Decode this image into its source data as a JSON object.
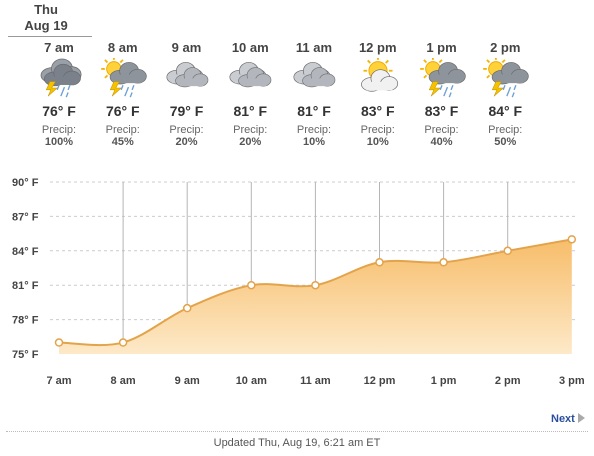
{
  "day": {
    "weekday": "Thu",
    "date": "Aug 19"
  },
  "hours": [
    {
      "time": "7 am",
      "icon": "thunderstorm-icon",
      "temp": "76° F",
      "precip_label": "Precip:",
      "precip": "100%"
    },
    {
      "time": "8 am",
      "icon": "sun-thunderstorm-icon",
      "temp": "76° F",
      "precip_label": "Precip:",
      "precip": "45%"
    },
    {
      "time": "9 am",
      "icon": "cloudy-icon",
      "temp": "79° F",
      "precip_label": "Precip:",
      "precip": "20%"
    },
    {
      "time": "10 am",
      "icon": "cloudy-icon",
      "temp": "81° F",
      "precip_label": "Precip:",
      "precip": "20%"
    },
    {
      "time": "11 am",
      "icon": "cloudy-icon",
      "temp": "81° F",
      "precip_label": "Precip:",
      "precip": "10%"
    },
    {
      "time": "12 pm",
      "icon": "partly-sunny-icon",
      "temp": "83° F",
      "precip_label": "Precip:",
      "precip": "10%"
    },
    {
      "time": "1 pm",
      "icon": "sun-thunderstorm-icon",
      "temp": "83° F",
      "precip_label": "Precip:",
      "precip": "40%"
    },
    {
      "time": "2 pm",
      "icon": "sun-thunderstorm-icon",
      "temp": "84° F",
      "precip_label": "Precip:",
      "precip": "50%"
    }
  ],
  "chart_data": {
    "type": "area",
    "categories": [
      "7 am",
      "8 am",
      "9 am",
      "10 am",
      "11 am",
      "12 pm",
      "1 pm",
      "2 pm",
      "3 pm"
    ],
    "series": [
      {
        "values": [
          76,
          76,
          79,
          81,
          81,
          83,
          83,
          84,
          85
        ]
      }
    ],
    "y_ticks": [
      "75° F",
      "78° F",
      "81° F",
      "84° F",
      "87° F",
      "90° F"
    ],
    "ylim": [
      75,
      90
    ],
    "grid": true,
    "colors": {
      "fill_top": "#f7bd6a",
      "fill_bottom": "#fde9c8",
      "line": "#e3a34a",
      "marker": "#ffffff",
      "gridline": "#cccccc"
    }
  },
  "nav": {
    "next_label": "Next"
  },
  "footer": {
    "updated": "Updated Thu, Aug 19, 6:21 am ET"
  }
}
